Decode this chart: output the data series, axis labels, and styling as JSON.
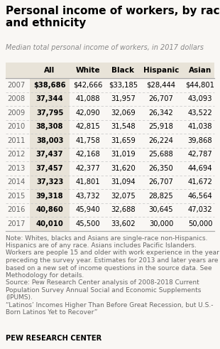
{
  "title": "Personal income of workers, by race\nand ethnicity",
  "subtitle": "Median total personal income of workers, in 2017 dollars",
  "columns": [
    "",
    "All",
    "White",
    "Black",
    "Hispanic",
    "Asian"
  ],
  "rows": [
    [
      "2007",
      "$38,686",
      "$42,666",
      "$33,185",
      "$28,444",
      "$44,801"
    ],
    [
      "2008",
      "37,344",
      "41,088",
      "31,957",
      "26,707",
      "43,093"
    ],
    [
      "2009",
      "37,795",
      "42,090",
      "32,069",
      "26,342",
      "43,522"
    ],
    [
      "2010",
      "38,308",
      "42,815",
      "31,548",
      "25,918",
      "41,038"
    ],
    [
      "2011",
      "38,003",
      "41,758",
      "31,659",
      "26,224",
      "39,868"
    ],
    [
      "2012",
      "37,437",
      "42,168",
      "31,019",
      "25,688",
      "42,787"
    ],
    [
      "2013",
      "37,457",
      "42,377",
      "31,620",
      "26,350",
      "44,694"
    ],
    [
      "2014",
      "37,323",
      "41,801",
      "31,094",
      "26,707",
      "41,672"
    ],
    [
      "2015",
      "39,318",
      "43,732",
      "32,075",
      "28,825",
      "46,564"
    ],
    [
      "2016",
      "40,860",
      "45,940",
      "32,688",
      "30,645",
      "47,032"
    ],
    [
      "2017",
      "40,010",
      "45,500",
      "33,602",
      "30,000",
      "50,000"
    ]
  ],
  "note_lines": [
    "Note: Whites, blacks and Asians are single-race non-Hispanics.",
    "Hispanics are of any race. Asians includes Pacific Islanders.",
    "Workers are people 15 and older with work experience in the year",
    "preceding the survey year. Estimates for 2013 and later years are",
    "based on a new set of income questions in the source data. See",
    "Methodology for details.",
    "Source: Pew Research Center analysis of 2008-2018 Current",
    "Population Survey Annual Social and Economic Supplements",
    "(IPUMS).",
    "“Latinos’ Incomes Higher Than Before Great Recession, but U.S.-",
    "Born Latinos Yet to Recover”"
  ],
  "footer": "PEW RESEARCH CENTER",
  "bg_color": "#f9f7f4",
  "header_bg": "#e8e3d8",
  "all_col_bg": "#e8e3d8",
  "title_color": "#000000",
  "subtitle_color": "#888888",
  "text_color": "#000000",
  "note_color": "#666666",
  "footer_color": "#000000",
  "divider_color": "#cccccc",
  "strong_line_color": "#aaaaaa"
}
